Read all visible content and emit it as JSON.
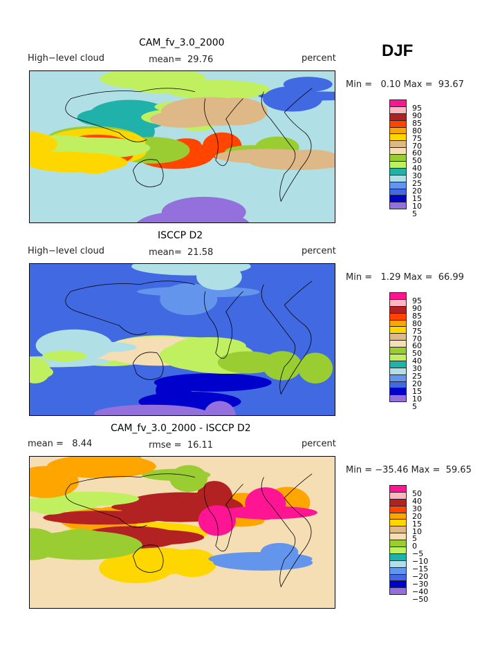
{
  "season": "DJF",
  "panels": [
    {
      "title": "CAM_fv_3.0_2000",
      "left_label": "High−level cloud",
      "mean_text": "mean=  29.76",
      "right_label": "percent",
      "minmax": "Min =   0.10 Max =  93.67",
      "levels": [
        "95",
        "90",
        "85",
        "80",
        "75",
        "70",
        "60",
        "50",
        "40",
        "30",
        "25",
        "20",
        "15",
        "10",
        "5"
      ],
      "base": "#b0e0e6"
    },
    {
      "title": "ISCCP D2",
      "left_label": "High−level cloud",
      "mean_text": "mean=  21.58",
      "right_label": "percent",
      "minmax": "Min =   1.29 Max =  66.99",
      "levels": [
        "95",
        "90",
        "85",
        "80",
        "75",
        "70",
        "60",
        "50",
        "40",
        "30",
        "25",
        "20",
        "15",
        "10",
        "5"
      ],
      "base": "#4169e1"
    },
    {
      "title": "CAM_fv_3.0_2000 - ISCCP D2",
      "left_label": "mean =   8.44",
      "mean_text": "rmse =  16.11",
      "right_label": "percent",
      "minmax": "Min = −35.46 Max =  59.65",
      "levels": [
        "50",
        "40",
        "30",
        "20",
        "15",
        "10",
        "5",
        "0",
        "−5",
        "−10",
        "−15",
        "−20",
        "−30",
        "−40",
        "−50"
      ],
      "base": "#f5deb3"
    }
  ],
  "colors": [
    "#ff1493",
    "#ffb6c1",
    "#b22222",
    "#ff4500",
    "#ffa500",
    "#ffd700",
    "#deb887",
    "#f5deb3",
    "#9acd32",
    "#c0f060",
    "#20b2aa",
    "#b0e0e6",
    "#6495ed",
    "#4169e1",
    "#0000cd",
    "#9370db"
  ]
}
